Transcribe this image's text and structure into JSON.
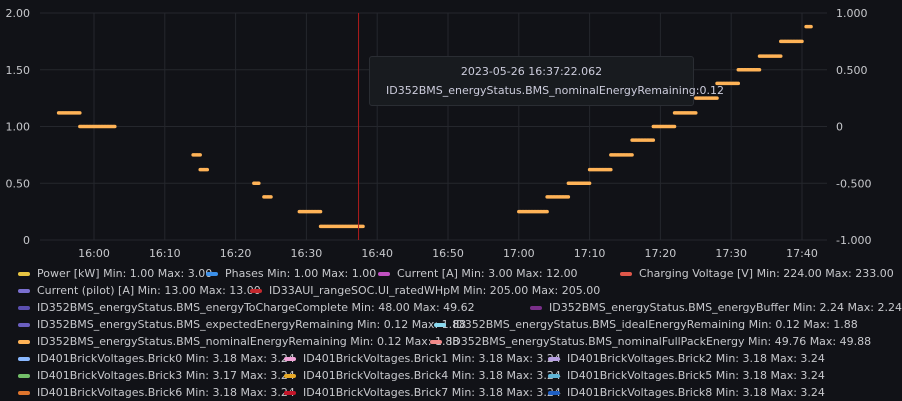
{
  "chart_data": {
    "type": "scatter",
    "yaxis_left": {
      "ticks": [
        "2.00",
        "1.50",
        "1.00",
        "0.50",
        "0"
      ],
      "ylim": [
        0,
        2.0
      ]
    },
    "yaxis_right": {
      "ticks": [
        "1.000",
        "0.500",
        "0",
        "-0.500",
        "-1.000"
      ],
      "ylim": [
        -1.0,
        1.0
      ]
    },
    "xaxis": {
      "ticks": [
        "16:00",
        "16:10",
        "16:20",
        "16:30",
        "16:40",
        "16:50",
        "17:00",
        "17:10",
        "17:20",
        "17:30",
        "17:40"
      ],
      "grid": true
    },
    "series": [
      {
        "name": "ID352BMS_energyStatus.BMS_nominalEnergyRemaining",
        "color": "#ffb357",
        "segments": [
          {
            "x": [
              "15:55",
              "15:58"
            ],
            "y": 1.12
          },
          {
            "x": [
              "15:58",
              "16:03"
            ],
            "y": 1.0
          },
          {
            "x": [
              "16:14",
              "16:15"
            ],
            "y": 0.75
          },
          {
            "x": [
              "16:15",
              "16:16"
            ],
            "y": 0.62
          },
          {
            "x": [
              "16:23",
              "16:23"
            ],
            "y": 0.5
          },
          {
            "x": [
              "16:24",
              "16:25"
            ],
            "y": 0.38
          },
          {
            "x": [
              "16:29",
              "16:32"
            ],
            "y": 0.25
          },
          {
            "x": [
              "16:32",
              "16:38"
            ],
            "y": 0.12
          },
          {
            "x": [
              "17:00",
              "17:04"
            ],
            "y": 0.25
          },
          {
            "x": [
              "17:04",
              "17:07"
            ],
            "y": 0.38
          },
          {
            "x": [
              "17:07",
              "17:10"
            ],
            "y": 0.5
          },
          {
            "x": [
              "17:10",
              "17:13"
            ],
            "y": 0.62
          },
          {
            "x": [
              "17:13",
              "17:16"
            ],
            "y": 0.75
          },
          {
            "x": [
              "17:16",
              "17:19"
            ],
            "y": 0.88
          },
          {
            "x": [
              "17:19",
              "17:22"
            ],
            "y": 1.0
          },
          {
            "x": [
              "17:22",
              "17:25"
            ],
            "y": 1.12
          },
          {
            "x": [
              "17:25",
              "17:28"
            ],
            "y": 1.25
          },
          {
            "x": [
              "17:28",
              "17:31"
            ],
            "y": 1.38
          },
          {
            "x": [
              "17:31",
              "17:34"
            ],
            "y": 1.5
          },
          {
            "x": [
              "17:34",
              "17:37"
            ],
            "y": 1.62
          },
          {
            "x": [
              "17:37",
              "17:40"
            ],
            "y": 1.75
          },
          {
            "x": [
              "17:41",
              "17:41"
            ],
            "y": 1.88
          }
        ]
      }
    ],
    "cursor": "16:37:22"
  },
  "tooltip": {
    "time": "2023-05-26 16:37:22.062",
    "series": "ID352BMS_energyStatus.BMS_nominalEnergyRemaining:",
    "value": "0.12"
  },
  "legend": [
    {
      "label": "Power [kW]  Min: 1.00  Max: 3.00",
      "color": "#e7c442"
    },
    {
      "label": "Phases  Min: 1.00  Max: 1.00",
      "color": "#3b8fe8"
    },
    {
      "label": "Current [A]  Min: 3.00  Max: 12.00",
      "color": "#c150c1"
    },
    {
      "label": "Charging Voltage [V]  Min: 224.00  Max: 233.00",
      "color": "#e0574a"
    },
    {
      "label": "Current (pilot) [A]  Min: 13.00  Max: 13.00",
      "color": "#7a6fd0"
    },
    {
      "label": "ID33AUI_rangeSOC.UI_ratedWHpM  Min: 205.00  Max: 205.00",
      "color": "#c4292e"
    },
    {
      "label": "ID352BMS_energyStatus.BMS_energyToChargeComplete  Min: 48.00  Max: 49.62",
      "color": "#5b4fb0"
    },
    {
      "label": "ID352BMS_energyStatus.BMS_energyBuffer  Min: 2.24  Max: 2.24",
      "color": "#7a2f8a"
    },
    {
      "label": "ID352BMS_energyStatus.BMS_expectedEnergyRemaining  Min: 0.12  Max: 1.88",
      "color": "#6b5fc0"
    },
    {
      "label": "ID352BMS_energyStatus.BMS_idealEnergyRemaining  Min: 0.12  Max: 1.88",
      "color": "#8ad8ee"
    },
    {
      "label": "ID352BMS_energyStatus.BMS_nominalEnergyRemaining  Min: 0.12  Max: 1.88",
      "color": "#ffb357"
    },
    {
      "label": "ID352BMS_energyStatus.BMS_nominalFullPackEnergy  Min: 49.76  Max: 49.88",
      "color": "#f08a8a"
    },
    {
      "label": "ID401BrickVoltages.Brick0  Min: 3.18  Max: 3.24",
      "color": "#8ab8ff"
    },
    {
      "label": "ID401BrickVoltages.Brick1  Min: 3.18  Max: 3.24",
      "color": "#f2a3d8"
    },
    {
      "label": "ID401BrickVoltages.Brick2  Min: 3.18  Max: 3.24",
      "color": "#b69ee0"
    },
    {
      "label": "ID401BrickVoltages.Brick3  Min: 3.17  Max: 3.24",
      "color": "#73bf69"
    },
    {
      "label": "ID401BrickVoltages.Brick4  Min: 3.18  Max: 3.24",
      "color": "#e6a827"
    },
    {
      "label": "ID401BrickVoltages.Brick5  Min: 3.18  Max: 3.24",
      "color": "#5fb4d6"
    },
    {
      "label": "ID401BrickVoltages.Brick6  Min: 3.18  Max: 3.24",
      "color": "#e0752d"
    },
    {
      "label": "ID401BrickVoltages.Brick7  Min: 3.18  Max: 3.24",
      "color": "#c4162a"
    },
    {
      "label": "ID401BrickVoltages.Brick8  Min: 3.18  Max: 3.24",
      "color": "#1f60c4"
    }
  ]
}
